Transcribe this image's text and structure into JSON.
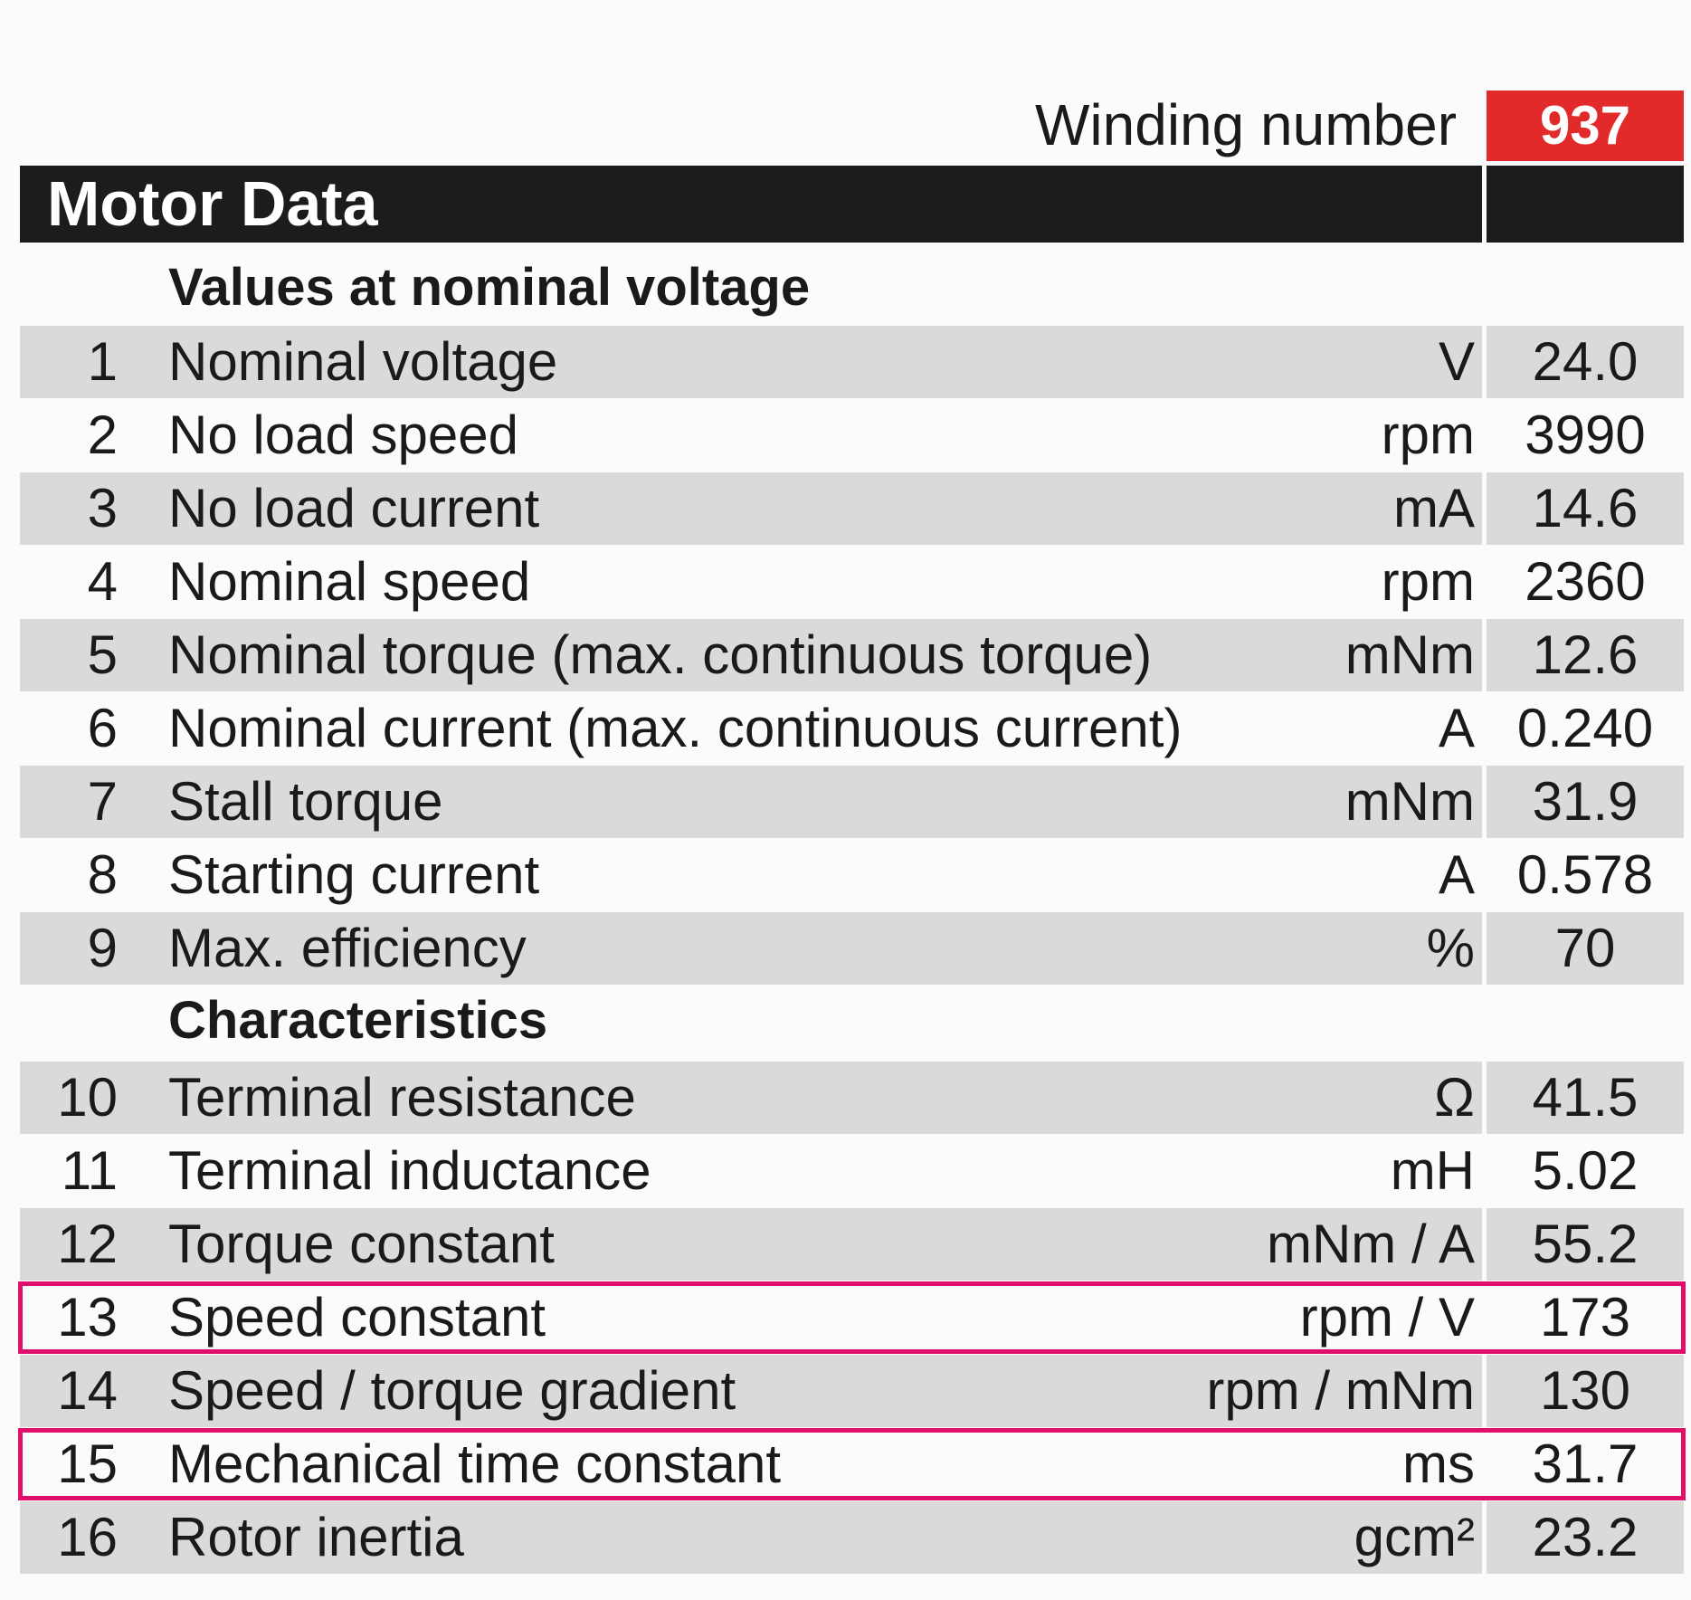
{
  "winding": {
    "label": "Winding number",
    "number": "937"
  },
  "header": {
    "title": "Motor Data"
  },
  "sections": [
    {
      "title": "Values at nominal voltage"
    },
    {
      "title": "Characteristics"
    }
  ],
  "rows": [
    {
      "num": "1",
      "label": "Nominal voltage",
      "unit": "V",
      "value": "24.0"
    },
    {
      "num": "2",
      "label": "No load speed",
      "unit": "rpm",
      "value": "3990"
    },
    {
      "num": "3",
      "label": "No load current",
      "unit": "mA",
      "value": "14.6"
    },
    {
      "num": "4",
      "label": "Nominal speed",
      "unit": "rpm",
      "value": "2360"
    },
    {
      "num": "5",
      "label": "Nominal torque (max. continuous torque)",
      "unit": "mNm",
      "value": "12.6"
    },
    {
      "num": "6",
      "label": "Nominal current (max. continuous current)",
      "unit": "A",
      "value": "0.240"
    },
    {
      "num": "7",
      "label": "Stall torque",
      "unit": "mNm",
      "value": "31.9"
    },
    {
      "num": "8",
      "label": "Starting current",
      "unit": "A",
      "value": "0.578"
    },
    {
      "num": "9",
      "label": "Max. efficiency",
      "unit": "%",
      "value": "70"
    },
    {
      "num": "10",
      "label": "Terminal resistance",
      "unit": "Ω",
      "value": "41.5"
    },
    {
      "num": "11",
      "label": "Terminal inductance",
      "unit": "mH",
      "value": "5.02"
    },
    {
      "num": "12",
      "label": "Torque constant",
      "unit": "mNm / A",
      "value": "55.2"
    },
    {
      "num": "13",
      "label": "Speed constant",
      "unit": "rpm / V",
      "value": "173"
    },
    {
      "num": "14",
      "label": "Speed / torque gradient",
      "unit": "rpm / mNm",
      "value": "130"
    },
    {
      "num": "15",
      "label": "Mechanical time constant",
      "unit": "ms",
      "value": "31.7"
    },
    {
      "num": "16",
      "label": "Rotor inertia",
      "unit": "gcm²",
      "value": "23.2"
    }
  ],
  "highlighted_rows": [
    "13",
    "15"
  ],
  "colors": {
    "header": "#1c1c1c",
    "winding_badge": "#e32a2a",
    "row_shade": "#dadada",
    "highlight_border": "#e0106a"
  }
}
